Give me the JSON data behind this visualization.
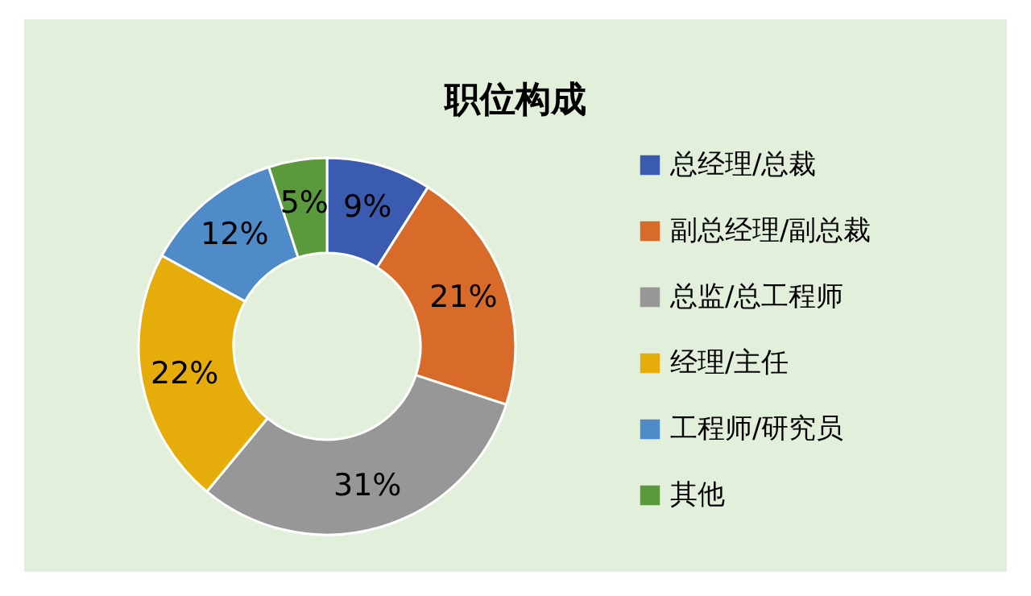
{
  "chart_data": {
    "type": "donut",
    "title": "职位构成",
    "categories": [
      "总经理/总裁",
      "副总经理/副总裁",
      "总监/总工程师",
      "经理/主任",
      "工程师/研究员",
      "其他"
    ],
    "values": [
      9,
      21,
      31,
      22,
      12,
      5
    ],
    "value_labels": [
      "9%",
      "21%",
      "31%",
      "22%",
      "12%",
      "5%"
    ],
    "colors": [
      "#3a5bb0",
      "#d96b2a",
      "#979797",
      "#e5ac0a",
      "#4e8bc8",
      "#5a9a3c"
    ],
    "legend": "right"
  }
}
